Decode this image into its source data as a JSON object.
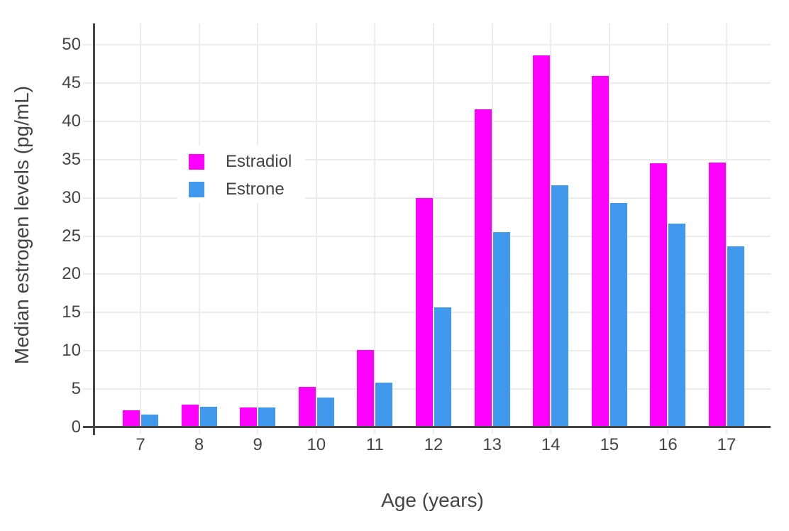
{
  "chart_data": {
    "type": "bar",
    "bar_mode": "grouped",
    "title": "",
    "xlabel": "Age (years)",
    "ylabel": "Median estrogen levels (pg/mL)",
    "categories": [
      "7",
      "8",
      "9",
      "10",
      "11",
      "12",
      "13",
      "14",
      "15",
      "16",
      "17"
    ],
    "series": [
      {
        "name": "Estradiol",
        "color": "#FF00FF",
        "values": [
          2.2,
          3.0,
          2.6,
          5.3,
          10.1,
          30.0,
          41.6,
          48.6,
          45.9,
          34.5,
          34.6
        ]
      },
      {
        "name": "Estrone",
        "color": "#4199EE",
        "values": [
          1.7,
          2.7,
          2.6,
          3.9,
          5.8,
          15.7,
          25.5,
          31.6,
          29.3,
          26.6,
          23.7
        ]
      }
    ],
    "yticks": [
      0,
      5,
      10,
      15,
      20,
      25,
      30,
      35,
      40,
      45,
      50
    ],
    "ylim": [
      0,
      52.8
    ],
    "grid": true,
    "legend_position": "inside top-left"
  },
  "style": {
    "background": "#FFFFFF",
    "grid_color": "#ECECEC",
    "axis_color": "#444444",
    "text_color": "#444444"
  }
}
